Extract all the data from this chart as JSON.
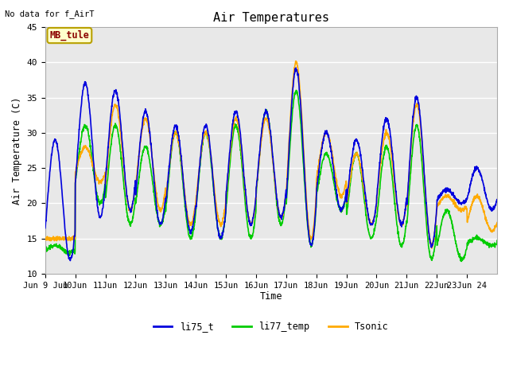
{
  "title": "Air Temperatures",
  "top_left_text": "No data for f_AirT",
  "ylabel": "Air Temperature (C)",
  "xlabel": "Time",
  "ylim": [
    10,
    45
  ],
  "plot_bg_color": "#e8e8e8",
  "grid_color": "white",
  "annotation_box_text": "MB_tule",
  "annotation_box_text_color": "#8b0000",
  "annotation_box_bg": "#ffffcc",
  "annotation_box_edge": "#b8a000",
  "series": {
    "li75_t": {
      "color": "#0000dd",
      "lw": 1.2
    },
    "li77_temp": {
      "color": "#00cc00",
      "lw": 1.2
    },
    "Tsonic": {
      "color": "#ffaa00",
      "lw": 1.2
    }
  },
  "xtick_labels": [
    "Jun 9 Jun",
    "10Jun",
    "11Jun",
    "12Jun",
    "13Jun",
    "14Jun",
    "15Jun",
    "16Jun",
    "17Jun",
    "18Jun",
    "19Jun",
    "20Jun",
    "21Jun",
    "22Jun",
    "23Jun 24"
  ],
  "xtick_positions": [
    0,
    1,
    2,
    3,
    4,
    5,
    6,
    7,
    8,
    9,
    10,
    11,
    12,
    13,
    14
  ],
  "ytick_labels": [
    "10",
    "15",
    "20",
    "25",
    "30",
    "35",
    "40",
    "45"
  ],
  "ytick_positions": [
    10,
    15,
    20,
    25,
    30,
    35,
    40,
    45
  ],
  "legend_labels": [
    "li75_t",
    "li77_temp",
    "Tsonic"
  ],
  "legend_colors": [
    "#0000dd",
    "#00cc00",
    "#ffaa00"
  ],
  "daily_maxes_blue": [
    29,
    37,
    36,
    33,
    31,
    31,
    33,
    33,
    39,
    30,
    29,
    32,
    35,
    22,
    25
  ],
  "daily_mines_blue": [
    12,
    18,
    19,
    17,
    16,
    15,
    17,
    18,
    14,
    19,
    17,
    17,
    14,
    20,
    19
  ],
  "daily_maxes_green": [
    14,
    31,
    31,
    28,
    30,
    30,
    31,
    33,
    36,
    27,
    27,
    28,
    31,
    19,
    15
  ],
  "daily_mines_green": [
    13,
    20,
    17,
    17,
    15,
    15,
    15,
    17,
    14,
    19,
    15,
    14,
    12,
    12,
    14
  ],
  "daily_maxes_orange": [
    15,
    28,
    34,
    32,
    30,
    30,
    32,
    32,
    40,
    30,
    27,
    30,
    34,
    21,
    21
  ],
  "daily_mines_orange": [
    15,
    23,
    19,
    19,
    17,
    17,
    17,
    18,
    15,
    21,
    17,
    17,
    14,
    19,
    16
  ],
  "pts_per_day": 144
}
